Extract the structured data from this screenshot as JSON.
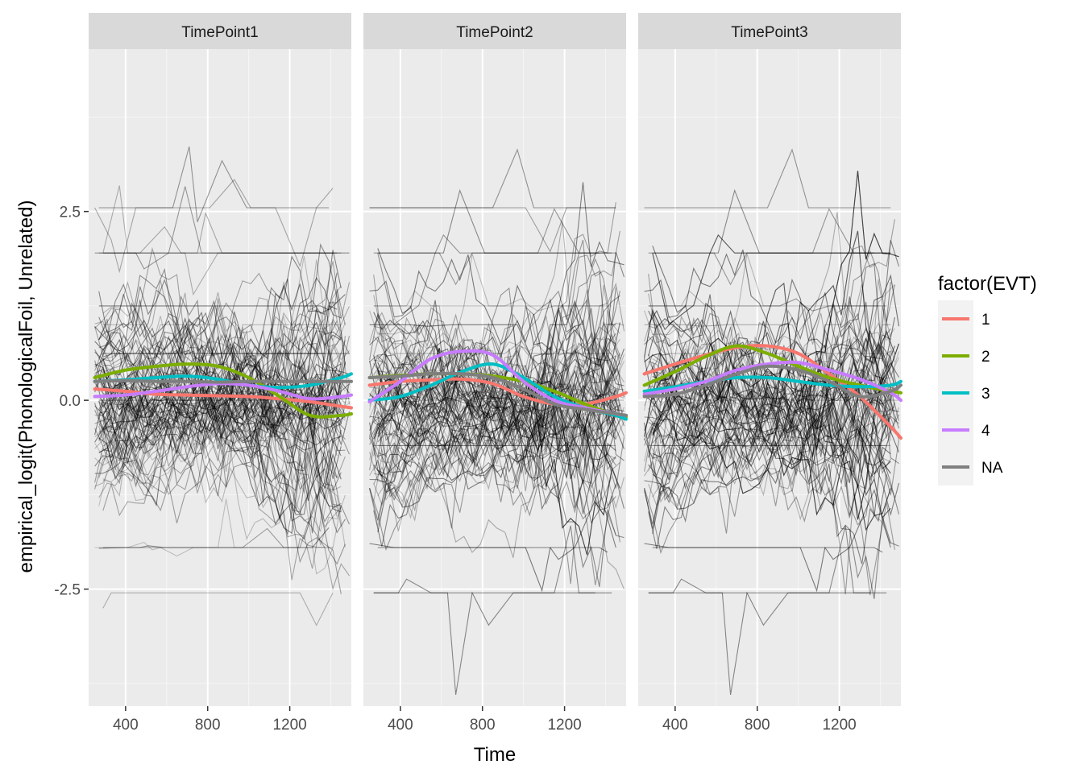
{
  "chart_data": {
    "type": "line",
    "facets": [
      "TimePoint1",
      "TimePoint2",
      "TimePoint3"
    ],
    "xlabel": "Time",
    "ylabel": "empirical_logit(PhonologicalFoil, Unrelated)",
    "xlim": [
      220,
      1500
    ],
    "ylim": [
      -4.05,
      4.65
    ],
    "x_ticks": [
      400,
      800,
      1200
    ],
    "x_tick_labels": [
      "400",
      "800",
      "1200"
    ],
    "y_ticks": [
      -2.5,
      0.0,
      2.5
    ],
    "y_tick_labels": [
      "-2.5",
      "0.0",
      "2.5"
    ],
    "background_lines": "many individual participant trajectories (thin grey, semi-transparent)",
    "legend": {
      "title": "factor(EVT)",
      "position": "right",
      "entries": [
        {
          "label": "1",
          "color": "#F8766D"
        },
        {
          "label": "2",
          "color": "#7CAE00"
        },
        {
          "label": "3",
          "color": "#00BFC4"
        },
        {
          "label": "4",
          "color": "#C77CFF"
        },
        {
          "label": "NA",
          "color": "#7F7F7F"
        }
      ]
    },
    "series": [
      {
        "name": "1",
        "color": "#F8766D",
        "x": [
          250,
          400,
          550,
          700,
          850,
          1000,
          1150,
          1300,
          1450,
          1500
        ],
        "panels": [
          [
            0.15,
            0.12,
            0.08,
            0.07,
            0.06,
            0.05,
            0.02,
            -0.02,
            -0.08,
            -0.1
          ],
          [
            0.2,
            0.25,
            0.27,
            0.28,
            0.22,
            0.05,
            -0.05,
            -0.05,
            0.05,
            0.1
          ],
          [
            0.35,
            0.48,
            0.6,
            0.7,
            0.72,
            0.62,
            0.35,
            0.05,
            -0.35,
            -0.5
          ]
        ]
      },
      {
        "name": "2",
        "color": "#7CAE00",
        "x": [
          250,
          400,
          550,
          700,
          850,
          1000,
          1150,
          1300,
          1450,
          1500
        ],
        "panels": [
          [
            0.3,
            0.4,
            0.45,
            0.48,
            0.45,
            0.3,
            0.05,
            -0.2,
            -0.2,
            -0.18
          ],
          [
            0.3,
            0.33,
            0.35,
            0.35,
            0.32,
            0.25,
            0.12,
            -0.05,
            -0.2,
            -0.22
          ],
          [
            0.2,
            0.38,
            0.58,
            0.72,
            0.62,
            0.45,
            0.3,
            0.2,
            0.12,
            0.1
          ]
        ]
      },
      {
        "name": "3",
        "color": "#00BFC4",
        "x": [
          250,
          400,
          550,
          700,
          850,
          1000,
          1150,
          1300,
          1450,
          1500
        ],
        "panels": [
          [
            0.25,
            0.27,
            0.3,
            0.32,
            0.28,
            0.2,
            0.17,
            0.2,
            0.3,
            0.35
          ],
          [
            0.0,
            0.05,
            0.2,
            0.38,
            0.48,
            0.3,
            0.05,
            -0.1,
            -0.2,
            -0.25
          ],
          [
            0.12,
            0.18,
            0.25,
            0.3,
            0.3,
            0.25,
            0.2,
            0.18,
            0.2,
            0.25
          ]
        ]
      },
      {
        "name": "4",
        "color": "#C77CFF",
        "x": [
          250,
          400,
          550,
          700,
          850,
          1000,
          1150,
          1300,
          1450,
          1500
        ],
        "panels": [
          [
            0.05,
            0.07,
            0.12,
            0.18,
            0.22,
            0.2,
            0.12,
            0.02,
            0.05,
            0.07
          ],
          [
            -0.02,
            0.25,
            0.55,
            0.65,
            0.6,
            0.25,
            0.0,
            -0.1,
            -0.18,
            -0.2
          ],
          [
            0.08,
            0.15,
            0.25,
            0.4,
            0.48,
            0.5,
            0.4,
            0.28,
            0.1,
            0.0
          ]
        ]
      },
      {
        "name": "NA",
        "color": "#7F7F7F",
        "x": [
          250,
          400,
          550,
          700,
          850,
          1000,
          1150,
          1300,
          1450,
          1500
        ],
        "panels": [
          [
            0.25,
            0.26,
            0.25,
            0.25,
            0.24,
            0.25,
            0.25,
            0.25,
            0.25,
            0.25
          ],
          [
            0.3,
            0.32,
            0.35,
            0.35,
            0.3,
            0.15,
            -0.05,
            -0.12,
            -0.18,
            -0.2
          ],
          [
            0.05,
            0.08,
            0.2,
            0.35,
            0.45,
            0.4,
            0.25,
            0.05,
            0.12,
            0.2
          ]
        ]
      }
    ]
  }
}
